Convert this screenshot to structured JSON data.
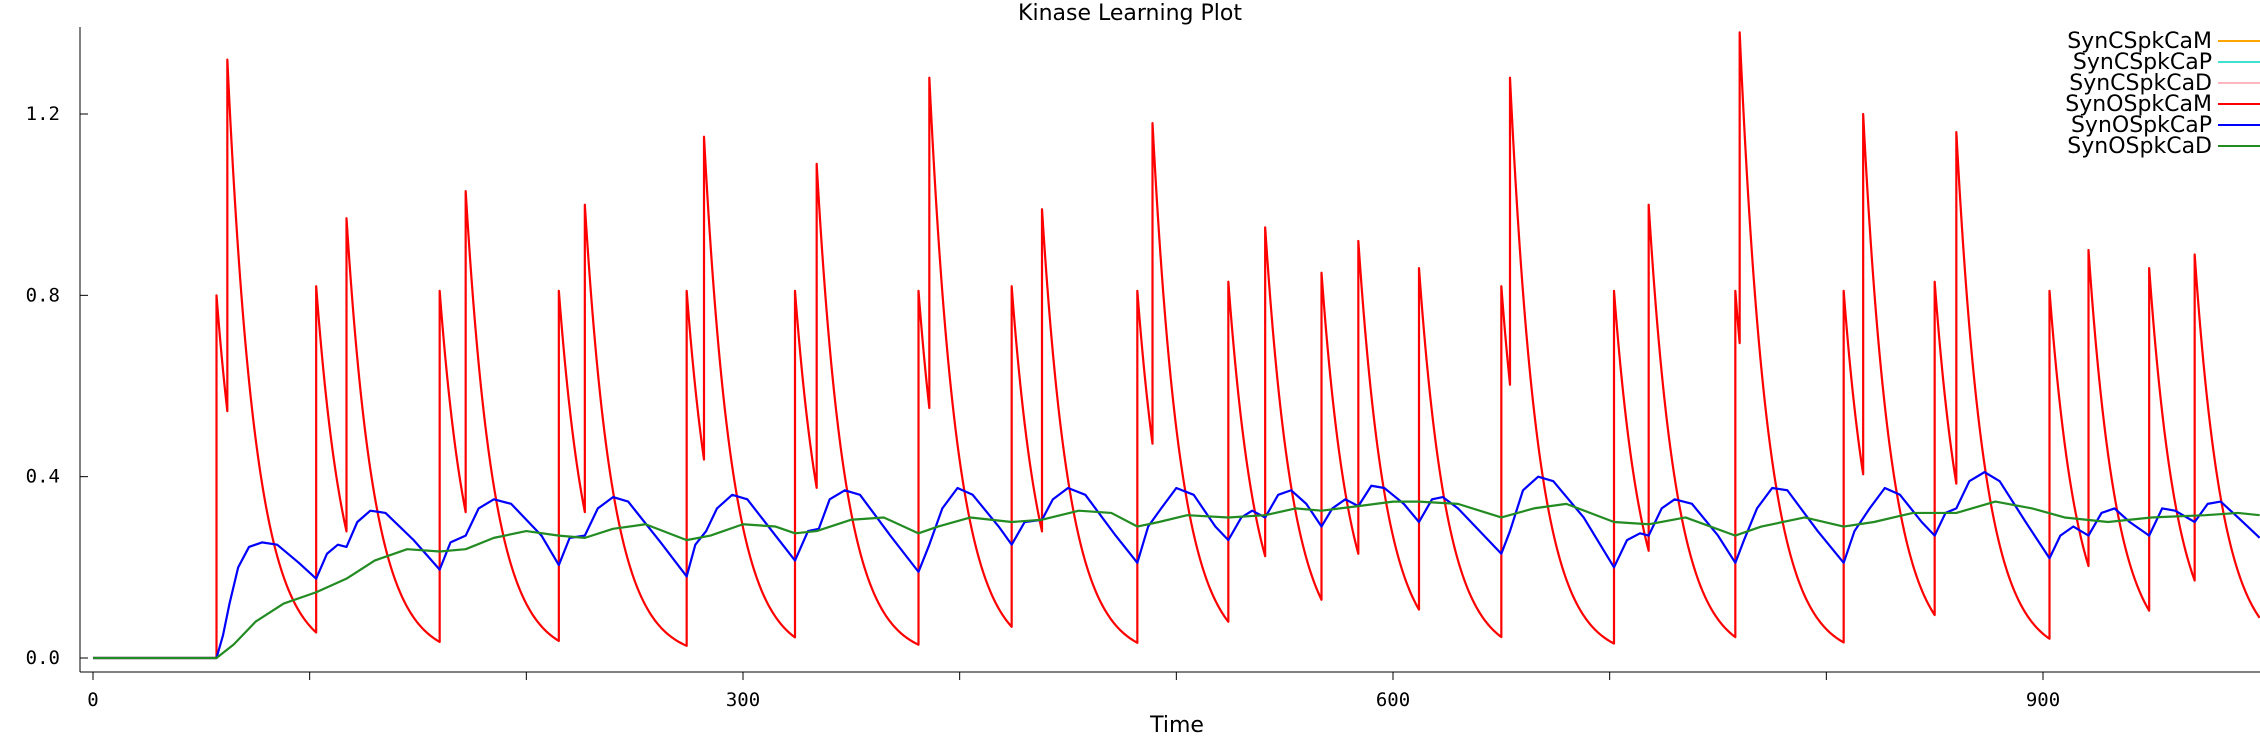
{
  "chart_data": {
    "type": "line",
    "title": "Kinase Learning Plot",
    "xlabel": "Time",
    "ylabel": "",
    "xlim": [
      0,
      1000
    ],
    "ylim": [
      0,
      1.38
    ],
    "x_ticks": [
      0,
      300,
      600,
      900
    ],
    "x_minor_ticks": [
      100,
      200,
      400,
      500,
      700,
      800
    ],
    "y_ticks": [
      0.0,
      0.4,
      0.8,
      1.2
    ],
    "x_tick_labels": [
      "0",
      "300",
      "600",
      "900"
    ],
    "y_tick_labels": [
      "0.0",
      "0.4",
      "0.8",
      "1.2"
    ],
    "grid": false,
    "legend_position": "top-right",
    "series": [
      {
        "name": "SynCSpkCaM",
        "color": "#FFA500",
        "visible_data": false
      },
      {
        "name": "SynCSpkCaP",
        "color": "#40E0D0",
        "visible_data": false
      },
      {
        "name": "SynCSpkCaD",
        "color": "#FFB6C1",
        "visible_data": false
      },
      {
        "name": "SynOSpkCaM",
        "color": "#FF0000",
        "visible_data": true,
        "baseline": 0.0,
        "onset": 57,
        "decay_tau": 13,
        "spikes": [
          [
            57,
            0.8
          ],
          [
            62,
            1.32
          ],
          [
            103,
            0.82
          ],
          [
            117,
            0.97
          ],
          [
            160,
            0.81
          ],
          [
            172,
            1.03
          ],
          [
            215,
            0.81
          ],
          [
            227,
            1.0
          ],
          [
            274,
            0.81
          ],
          [
            282,
            1.15
          ],
          [
            324,
            0.81
          ],
          [
            334,
            1.09
          ],
          [
            381,
            0.81
          ],
          [
            386,
            1.28
          ],
          [
            424,
            0.82
          ],
          [
            438,
            0.99
          ],
          [
            482,
            0.81
          ],
          [
            489,
            1.18
          ],
          [
            524,
            0.83
          ],
          [
            541,
            0.95
          ],
          [
            567,
            0.85
          ],
          [
            584,
            0.92
          ],
          [
            612,
            0.86
          ],
          [
            650,
            0.82
          ],
          [
            654,
            1.28
          ],
          [
            702,
            0.81
          ],
          [
            718,
            1.0
          ],
          [
            758,
            0.81
          ],
          [
            760,
            1.38
          ],
          [
            808,
            0.81
          ],
          [
            817,
            1.2
          ],
          [
            850,
            0.83
          ],
          [
            860,
            1.16
          ],
          [
            903,
            0.81
          ],
          [
            921,
            0.9
          ],
          [
            949,
            0.86
          ],
          [
            970,
            0.89
          ]
        ]
      },
      {
        "name": "SynOSpkCaP",
        "color": "#0000FF",
        "visible_data": true,
        "points": [
          [
            0,
            0.0
          ],
          [
            57,
            0.0
          ],
          [
            60,
            0.05
          ],
          [
            63,
            0.12
          ],
          [
            67,
            0.2
          ],
          [
            72,
            0.245
          ],
          [
            78,
            0.255
          ],
          [
            85,
            0.25
          ],
          [
            95,
            0.21
          ],
          [
            103,
            0.175
          ],
          [
            108,
            0.23
          ],
          [
            113,
            0.25
          ],
          [
            117,
            0.245
          ],
          [
            122,
            0.3
          ],
          [
            128,
            0.325
          ],
          [
            135,
            0.32
          ],
          [
            148,
            0.26
          ],
          [
            160,
            0.195
          ],
          [
            165,
            0.255
          ],
          [
            172,
            0.27
          ],
          [
            178,
            0.33
          ],
          [
            185,
            0.35
          ],
          [
            193,
            0.34
          ],
          [
            207,
            0.27
          ],
          [
            215,
            0.205
          ],
          [
            220,
            0.265
          ],
          [
            227,
            0.27
          ],
          [
            233,
            0.33
          ],
          [
            240,
            0.355
          ],
          [
            247,
            0.345
          ],
          [
            262,
            0.255
          ],
          [
            274,
            0.18
          ],
          [
            278,
            0.25
          ],
          [
            283,
            0.28
          ],
          [
            288,
            0.33
          ],
          [
            295,
            0.36
          ],
          [
            302,
            0.35
          ],
          [
            315,
            0.27
          ],
          [
            324,
            0.215
          ],
          [
            330,
            0.28
          ],
          [
            335,
            0.285
          ],
          [
            340,
            0.35
          ],
          [
            347,
            0.37
          ],
          [
            354,
            0.36
          ],
          [
            368,
            0.27
          ],
          [
            381,
            0.19
          ],
          [
            386,
            0.25
          ],
          [
            392,
            0.33
          ],
          [
            399,
            0.375
          ],
          [
            406,
            0.36
          ],
          [
            418,
            0.29
          ],
          [
            424,
            0.25
          ],
          [
            430,
            0.3
          ],
          [
            438,
            0.305
          ],
          [
            443,
            0.35
          ],
          [
            450,
            0.375
          ],
          [
            458,
            0.36
          ],
          [
            472,
            0.27
          ],
          [
            482,
            0.21
          ],
          [
            487,
            0.29
          ],
          [
            493,
            0.33
          ],
          [
            500,
            0.375
          ],
          [
            508,
            0.36
          ],
          [
            518,
            0.29
          ],
          [
            524,
            0.26
          ],
          [
            530,
            0.31
          ],
          [
            535,
            0.325
          ],
          [
            541,
            0.31
          ],
          [
            547,
            0.36
          ],
          [
            553,
            0.37
          ],
          [
            560,
            0.34
          ],
          [
            567,
            0.29
          ],
          [
            572,
            0.33
          ],
          [
            578,
            0.35
          ],
          [
            584,
            0.335
          ],
          [
            590,
            0.38
          ],
          [
            596,
            0.375
          ],
          [
            605,
            0.34
          ],
          [
            612,
            0.3
          ],
          [
            618,
            0.35
          ],
          [
            623,
            0.355
          ],
          [
            630,
            0.33
          ],
          [
            642,
            0.27
          ],
          [
            650,
            0.23
          ],
          [
            654,
            0.28
          ],
          [
            660,
            0.37
          ],
          [
            667,
            0.4
          ],
          [
            674,
            0.39
          ],
          [
            688,
            0.31
          ],
          [
            702,
            0.2
          ],
          [
            708,
            0.26
          ],
          [
            714,
            0.275
          ],
          [
            718,
            0.27
          ],
          [
            724,
            0.33
          ],
          [
            730,
            0.35
          ],
          [
            738,
            0.34
          ],
          [
            750,
            0.27
          ],
          [
            758,
            0.21
          ],
          [
            762,
            0.26
          ],
          [
            768,
            0.33
          ],
          [
            775,
            0.375
          ],
          [
            782,
            0.37
          ],
          [
            796,
            0.28
          ],
          [
            808,
            0.21
          ],
          [
            813,
            0.28
          ],
          [
            820,
            0.33
          ],
          [
            827,
            0.375
          ],
          [
            834,
            0.36
          ],
          [
            844,
            0.3
          ],
          [
            850,
            0.27
          ],
          [
            855,
            0.32
          ],
          [
            860,
            0.33
          ],
          [
            866,
            0.39
          ],
          [
            873,
            0.41
          ],
          [
            880,
            0.39
          ],
          [
            892,
            0.3
          ],
          [
            903,
            0.22
          ],
          [
            908,
            0.27
          ],
          [
            914,
            0.29
          ],
          [
            921,
            0.27
          ],
          [
            927,
            0.32
          ],
          [
            933,
            0.33
          ],
          [
            940,
            0.3
          ],
          [
            949,
            0.27
          ],
          [
            955,
            0.33
          ],
          [
            961,
            0.325
          ],
          [
            970,
            0.3
          ],
          [
            976,
            0.34
          ],
          [
            982,
            0.345
          ],
          [
            990,
            0.31
          ],
          [
            1000,
            0.265
          ]
        ]
      },
      {
        "name": "SynOSpkCaD",
        "color": "#228B22",
        "visible_data": true,
        "points": [
          [
            0,
            0.0
          ],
          [
            57,
            0.0
          ],
          [
            65,
            0.03
          ],
          [
            75,
            0.08
          ],
          [
            88,
            0.12
          ],
          [
            103,
            0.145
          ],
          [
            117,
            0.175
          ],
          [
            130,
            0.215
          ],
          [
            145,
            0.24
          ],
          [
            160,
            0.235
          ],
          [
            172,
            0.24
          ],
          [
            185,
            0.265
          ],
          [
            200,
            0.28
          ],
          [
            215,
            0.27
          ],
          [
            227,
            0.265
          ],
          [
            240,
            0.285
          ],
          [
            255,
            0.295
          ],
          [
            274,
            0.26
          ],
          [
            285,
            0.27
          ],
          [
            300,
            0.295
          ],
          [
            315,
            0.29
          ],
          [
            324,
            0.275
          ],
          [
            334,
            0.28
          ],
          [
            350,
            0.305
          ],
          [
            365,
            0.31
          ],
          [
            381,
            0.275
          ],
          [
            390,
            0.29
          ],
          [
            405,
            0.31
          ],
          [
            424,
            0.3
          ],
          [
            438,
            0.305
          ],
          [
            455,
            0.325
          ],
          [
            470,
            0.32
          ],
          [
            482,
            0.29
          ],
          [
            492,
            0.3
          ],
          [
            505,
            0.315
          ],
          [
            524,
            0.31
          ],
          [
            541,
            0.315
          ],
          [
            555,
            0.33
          ],
          [
            567,
            0.325
          ],
          [
            584,
            0.335
          ],
          [
            600,
            0.345
          ],
          [
            612,
            0.345
          ],
          [
            630,
            0.34
          ],
          [
            650,
            0.31
          ],
          [
            665,
            0.33
          ],
          [
            680,
            0.34
          ],
          [
            702,
            0.3
          ],
          [
            718,
            0.295
          ],
          [
            735,
            0.31
          ],
          [
            758,
            0.27
          ],
          [
            770,
            0.29
          ],
          [
            790,
            0.31
          ],
          [
            808,
            0.29
          ],
          [
            822,
            0.3
          ],
          [
            840,
            0.32
          ],
          [
            860,
            0.32
          ],
          [
            878,
            0.345
          ],
          [
            895,
            0.33
          ],
          [
            910,
            0.31
          ],
          [
            930,
            0.3
          ],
          [
            950,
            0.31
          ],
          [
            975,
            0.315
          ],
          [
            990,
            0.32
          ],
          [
            1000,
            0.315
          ]
        ]
      }
    ]
  }
}
